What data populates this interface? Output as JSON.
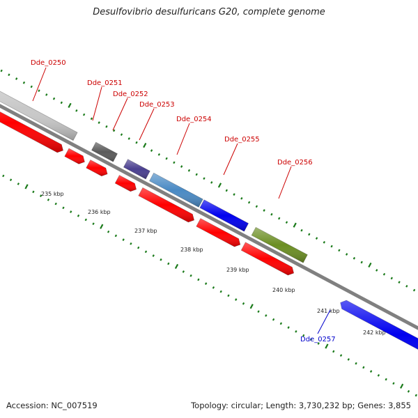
{
  "title": "Desulfovibrio desulfuricans G20, complete genome",
  "footer": {
    "accession": "Accession: NC_007519",
    "summary": "Topology: circular; Length: 3,730,232 bp; Genes: 3,855"
  },
  "colors": {
    "label_red": "#cc0000",
    "label_blue": "#0000cc",
    "backbone": "#808080",
    "tick": "#1a7a1a",
    "cds_red": "#ff0000"
  },
  "axis": {
    "unit": "kbp",
    "ticks": [
      "235 kbp",
      "236 kbp",
      "237 kbp",
      "238 kbp",
      "239 kbp",
      "240 kbp",
      "241 kbp",
      "242 kbp"
    ]
  },
  "genes": [
    {
      "id": "Dde_0250",
      "color": "#c8c8c8",
      "label_color": "#cc0000"
    },
    {
      "id": "Dde_0251",
      "color": "#5a5a5a",
      "label_color": "#cc0000"
    },
    {
      "id": "Dde_0252",
      "color": "#4a3f8f",
      "label_color": "#cc0000"
    },
    {
      "id": "Dde_0253",
      "color": "#4a8ac4",
      "label_color": "#cc0000"
    },
    {
      "id": "Dde_0254",
      "color": "#4a8ac4",
      "label_color": "#cc0000"
    },
    {
      "id": "Dde_0255",
      "color": "#0000ee",
      "label_color": "#cc0000"
    },
    {
      "id": "Dde_0256",
      "color": "#6b8e23",
      "label_color": "#cc0000"
    },
    {
      "id": "Dde_0257",
      "color": "#0000ee",
      "label_color": "#0000cc"
    }
  ]
}
